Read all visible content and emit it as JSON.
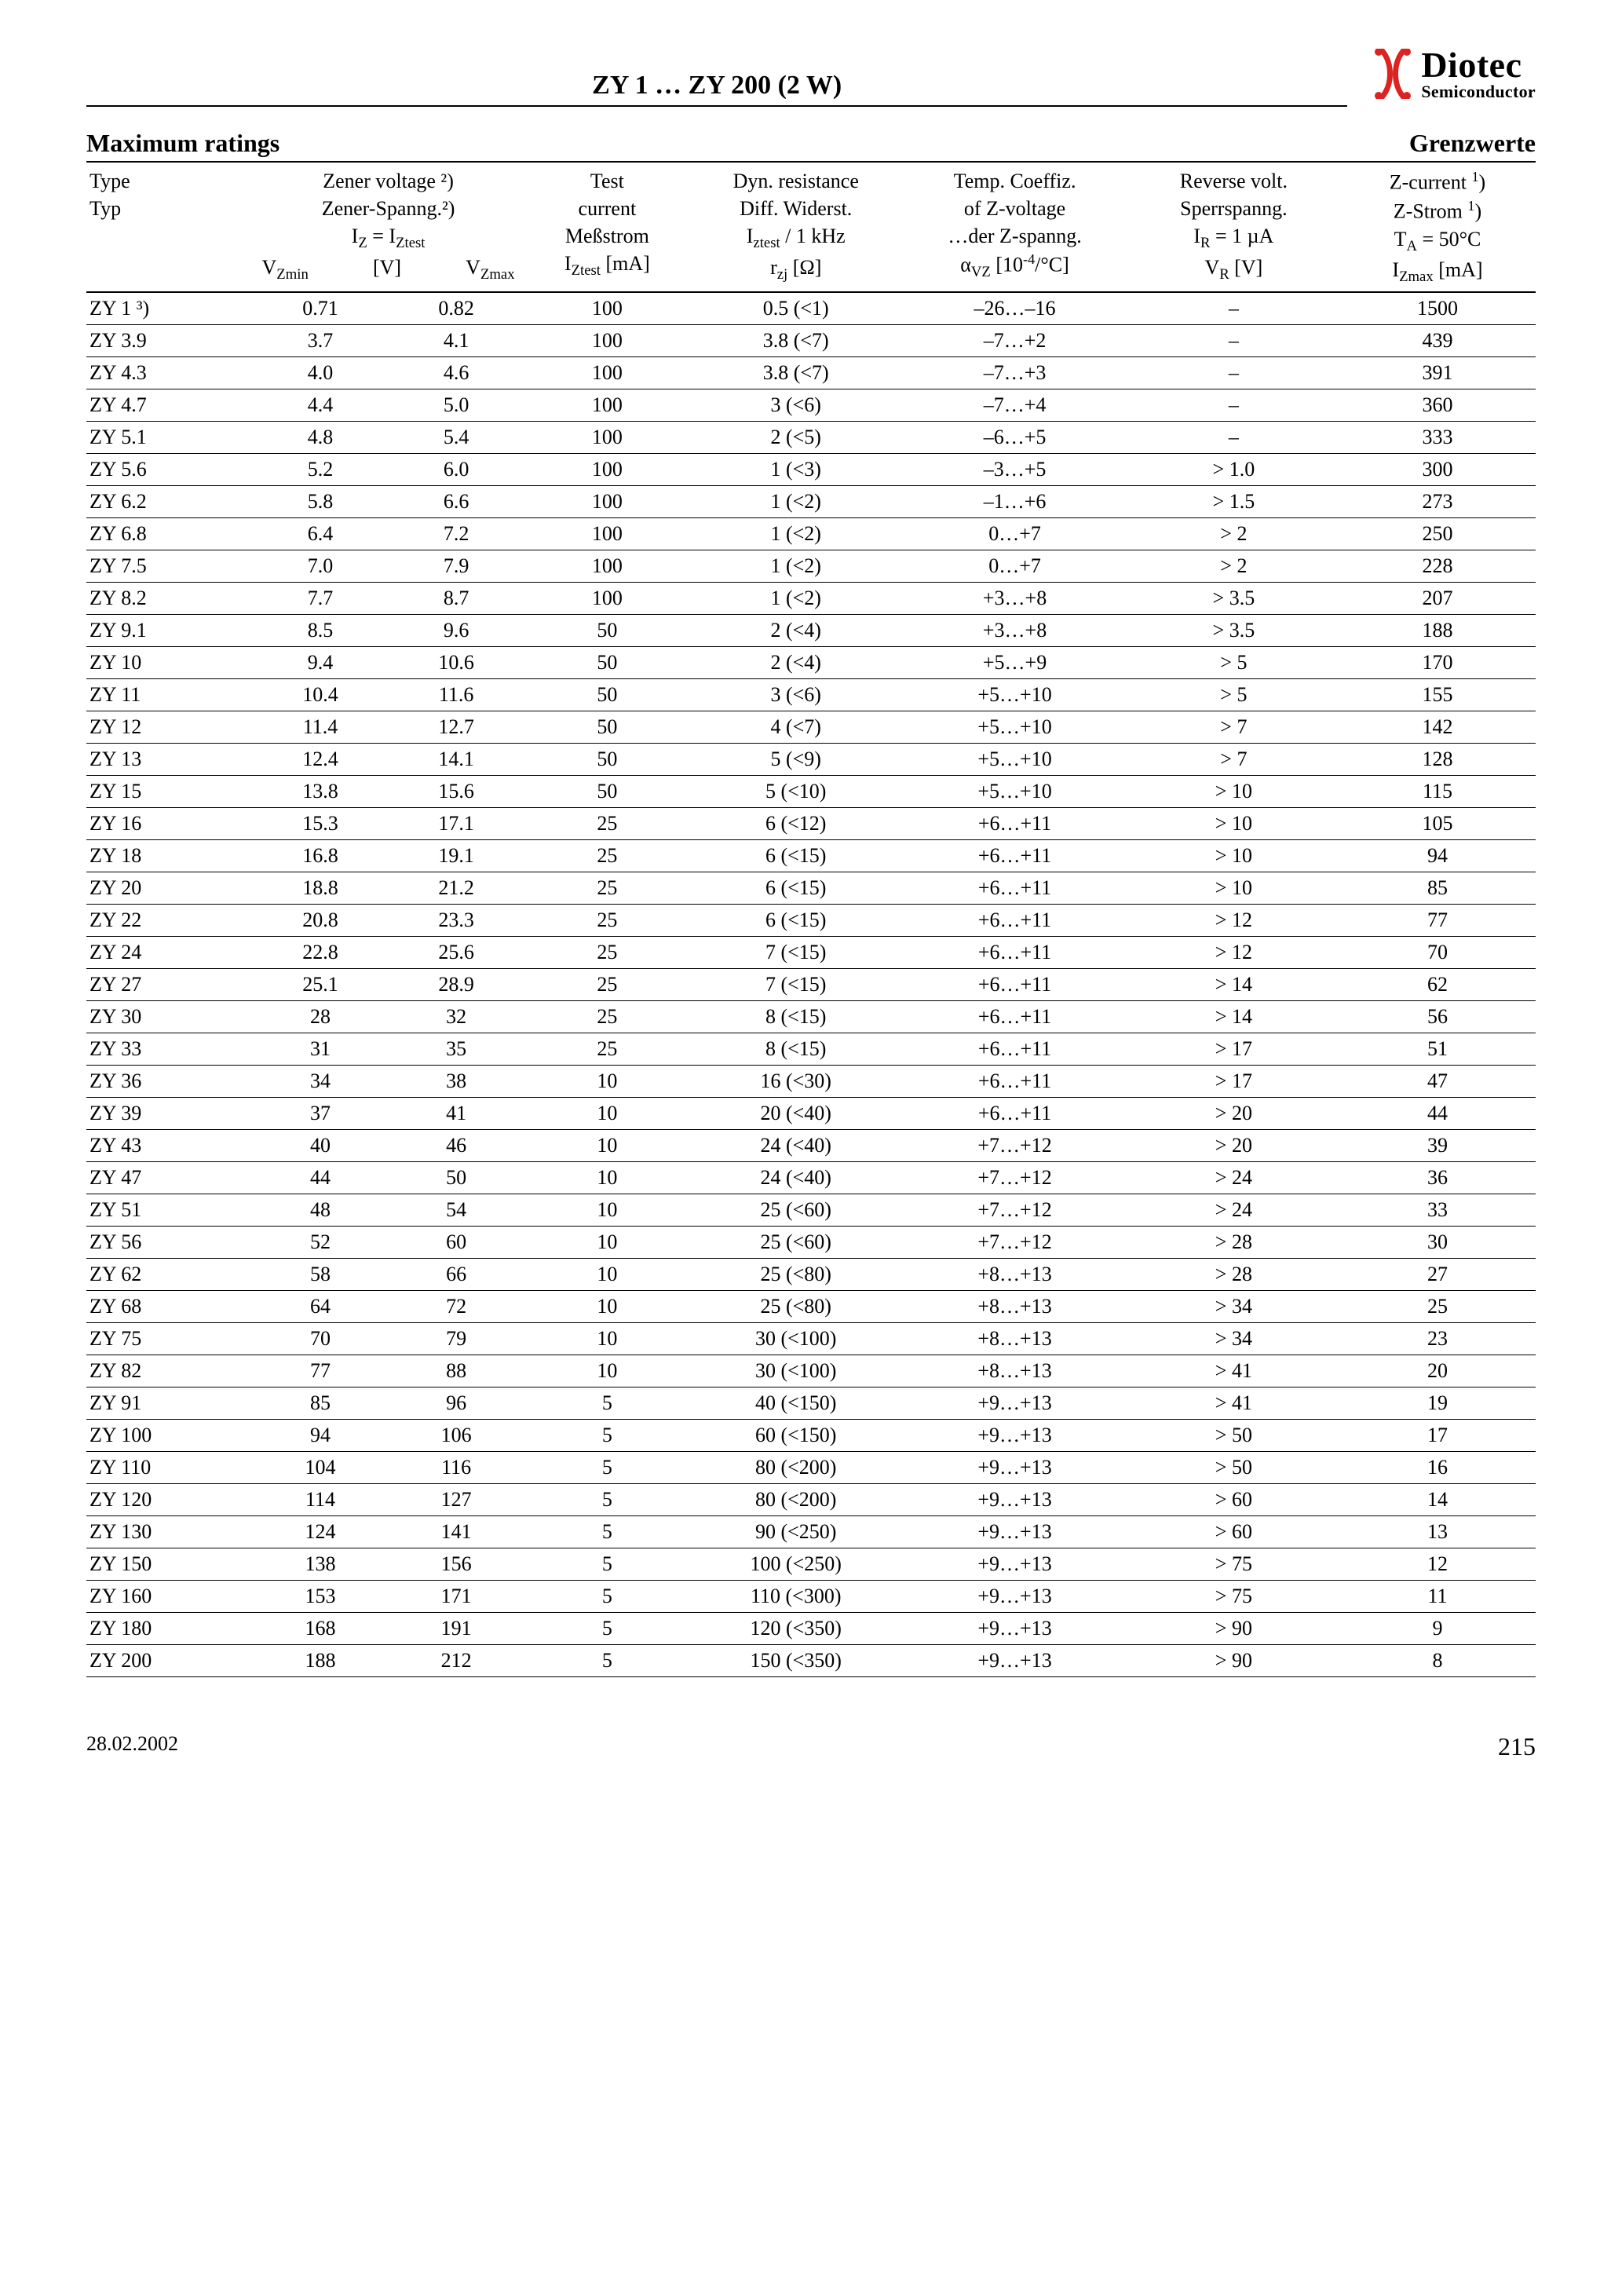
{
  "doc_title": "ZY 1 … ZY 200 (2 W)",
  "logo_main": "Diotec",
  "logo_sub": "Semiconductor",
  "section_left": "Maximum ratings",
  "section_right": "Grenzwerte",
  "footer_date": "28.02.2002",
  "footer_page": "215",
  "headers": {
    "type": [
      "Type",
      "Typ"
    ],
    "zener": [
      "Zener voltage ²)",
      "Zener-Spanng.²)",
      "I_Z = I_Ztest"
    ],
    "vzmin": "V_Zmin",
    "vz_unit": "[V]",
    "vzmax": "V_Zmax",
    "iztest": [
      "Test",
      "current",
      "Meßstrom",
      "I_Ztest [mA]"
    ],
    "rzj": [
      "Dyn. resistance",
      "Diff. Widerst.",
      "I_ztest / 1 kHz",
      "r_zj [Ω]"
    ],
    "avz": [
      "Temp. Coeffiz.",
      "of Z-voltage",
      "…der Z-spanng.",
      "α_VZ [10⁻⁴/°C]"
    ],
    "vr": [
      "Reverse volt.",
      "Sperrspanng.",
      "I_R = 1 µA",
      "V_R [V]"
    ],
    "izmax": [
      "Z-current ¹)",
      "Z-Strom ¹)",
      "T_A = 50°C",
      "I_Zmax [mA]"
    ]
  },
  "rows": [
    {
      "type": "ZY 1 ³)",
      "vzmin": "0.71",
      "vzmax": "0.82",
      "iz": "100",
      "rzj": "0.5 (<1)",
      "avz": "–26…–16",
      "vr": "–",
      "izmax": "1500"
    },
    {
      "type": "ZY 3.9",
      "vzmin": "3.7",
      "vzmax": "4.1",
      "iz": "100",
      "rzj": "3.8 (<7)",
      "avz": "–7…+2",
      "vr": "–",
      "izmax": "439"
    },
    {
      "type": "ZY 4.3",
      "vzmin": "4.0",
      "vzmax": "4.6",
      "iz": "100",
      "rzj": "3.8 (<7)",
      "avz": "–7…+3",
      "vr": "–",
      "izmax": "391"
    },
    {
      "type": "ZY 4.7",
      "vzmin": "4.4",
      "vzmax": "5.0",
      "iz": "100",
      "rzj": "3 (<6)",
      "avz": "–7…+4",
      "vr": "–",
      "izmax": "360"
    },
    {
      "type": "ZY 5.1",
      "vzmin": "4.8",
      "vzmax": "5.4",
      "iz": "100",
      "rzj": "2 (<5)",
      "avz": "–6…+5",
      "vr": "–",
      "izmax": "333"
    },
    {
      "type": "ZY 5.6",
      "vzmin": "5.2",
      "vzmax": "6.0",
      "iz": "100",
      "rzj": "1 (<3)",
      "avz": "–3…+5",
      "vr": "> 1.0",
      "izmax": "300"
    },
    {
      "type": "ZY 6.2",
      "vzmin": "5.8",
      "vzmax": "6.6",
      "iz": "100",
      "rzj": "1 (<2)",
      "avz": "–1…+6",
      "vr": "> 1.5",
      "izmax": "273"
    },
    {
      "type": "ZY 6.8",
      "vzmin": "6.4",
      "vzmax": "7.2",
      "iz": "100",
      "rzj": "1 (<2)",
      "avz": "0…+7",
      "vr": "> 2",
      "izmax": "250"
    },
    {
      "type": "ZY 7.5",
      "vzmin": "7.0",
      "vzmax": "7.9",
      "iz": "100",
      "rzj": "1 (<2)",
      "avz": "0…+7",
      "vr": "> 2",
      "izmax": "228"
    },
    {
      "type": "ZY 8.2",
      "vzmin": "7.7",
      "vzmax": "8.7",
      "iz": "100",
      "rzj": "1 (<2)",
      "avz": "+3…+8",
      "vr": "> 3.5",
      "izmax": "207"
    },
    {
      "type": "ZY 9.1",
      "vzmin": "8.5",
      "vzmax": "9.6",
      "iz": "50",
      "rzj": "2 (<4)",
      "avz": "+3…+8",
      "vr": "> 3.5",
      "izmax": "188"
    },
    {
      "type": "ZY 10",
      "vzmin": "9.4",
      "vzmax": "10.6",
      "iz": "50",
      "rzj": "2 (<4)",
      "avz": "+5…+9",
      "vr": "> 5",
      "izmax": "170"
    },
    {
      "type": "ZY 11",
      "vzmin": "10.4",
      "vzmax": "11.6",
      "iz": "50",
      "rzj": "3 (<6)",
      "avz": "+5…+10",
      "vr": "> 5",
      "izmax": "155"
    },
    {
      "type": "ZY 12",
      "vzmin": "11.4",
      "vzmax": "12.7",
      "iz": "50",
      "rzj": "4 (<7)",
      "avz": "+5…+10",
      "vr": "> 7",
      "izmax": "142"
    },
    {
      "type": "ZY 13",
      "vzmin": "12.4",
      "vzmax": "14.1",
      "iz": "50",
      "rzj": "5 (<9)",
      "avz": "+5…+10",
      "vr": "> 7",
      "izmax": "128"
    },
    {
      "type": "ZY 15",
      "vzmin": "13.8",
      "vzmax": "15.6",
      "iz": "50",
      "rzj": "5 (<10)",
      "avz": "+5…+10",
      "vr": "> 10",
      "izmax": "115"
    },
    {
      "type": "ZY 16",
      "vzmin": "15.3",
      "vzmax": "17.1",
      "iz": "25",
      "rzj": "6 (<12)",
      "avz": "+6…+11",
      "vr": "> 10",
      "izmax": "105"
    },
    {
      "type": "ZY 18",
      "vzmin": "16.8",
      "vzmax": "19.1",
      "iz": "25",
      "rzj": "6 (<15)",
      "avz": "+6…+11",
      "vr": "> 10",
      "izmax": "94"
    },
    {
      "type": "ZY 20",
      "vzmin": "18.8",
      "vzmax": "21.2",
      "iz": "25",
      "rzj": "6 (<15)",
      "avz": "+6…+11",
      "vr": "> 10",
      "izmax": "85"
    },
    {
      "type": "ZY 22",
      "vzmin": "20.8",
      "vzmax": "23.3",
      "iz": "25",
      "rzj": "6 (<15)",
      "avz": "+6…+11",
      "vr": "> 12",
      "izmax": "77"
    },
    {
      "type": "ZY 24",
      "vzmin": "22.8",
      "vzmax": "25.6",
      "iz": "25",
      "rzj": "7 (<15)",
      "avz": "+6…+11",
      "vr": "> 12",
      "izmax": "70"
    },
    {
      "type": "ZY 27",
      "vzmin": "25.1",
      "vzmax": "28.9",
      "iz": "25",
      "rzj": "7 (<15)",
      "avz": "+6…+11",
      "vr": "> 14",
      "izmax": "62"
    },
    {
      "type": "ZY 30",
      "vzmin": "28",
      "vzmax": "32",
      "iz": "25",
      "rzj": "8 (<15)",
      "avz": "+6…+11",
      "vr": "> 14",
      "izmax": "56"
    },
    {
      "type": "ZY 33",
      "vzmin": "31",
      "vzmax": "35",
      "iz": "25",
      "rzj": "8 (<15)",
      "avz": "+6…+11",
      "vr": "> 17",
      "izmax": "51"
    },
    {
      "type": "ZY 36",
      "vzmin": "34",
      "vzmax": "38",
      "iz": "10",
      "rzj": "16 (<30)",
      "avz": "+6…+11",
      "vr": "> 17",
      "izmax": "47"
    },
    {
      "type": "ZY 39",
      "vzmin": "37",
      "vzmax": "41",
      "iz": "10",
      "rzj": "20 (<40)",
      "avz": "+6…+11",
      "vr": "> 20",
      "izmax": "44"
    },
    {
      "type": "ZY 43",
      "vzmin": "40",
      "vzmax": "46",
      "iz": "10",
      "rzj": "24 (<40)",
      "avz": "+7…+12",
      "vr": "> 20",
      "izmax": "39"
    },
    {
      "type": "ZY 47",
      "vzmin": "44",
      "vzmax": "50",
      "iz": "10",
      "rzj": "24 (<40)",
      "avz": "+7…+12",
      "vr": "> 24",
      "izmax": "36"
    },
    {
      "type": "ZY 51",
      "vzmin": "48",
      "vzmax": "54",
      "iz": "10",
      "rzj": "25 (<60)",
      "avz": "+7…+12",
      "vr": "> 24",
      "izmax": "33"
    },
    {
      "type": "ZY 56",
      "vzmin": "52",
      "vzmax": "60",
      "iz": "10",
      "rzj": "25 (<60)",
      "avz": "+7…+12",
      "vr": "> 28",
      "izmax": "30"
    },
    {
      "type": "ZY 62",
      "vzmin": "58",
      "vzmax": "66",
      "iz": "10",
      "rzj": "25 (<80)",
      "avz": "+8…+13",
      "vr": "> 28",
      "izmax": "27"
    },
    {
      "type": "ZY 68",
      "vzmin": "64",
      "vzmax": "72",
      "iz": "10",
      "rzj": "25 (<80)",
      "avz": "+8…+13",
      "vr": "> 34",
      "izmax": "25"
    },
    {
      "type": "ZY 75",
      "vzmin": "70",
      "vzmax": "79",
      "iz": "10",
      "rzj": "30 (<100)",
      "avz": "+8…+13",
      "vr": "> 34",
      "izmax": "23"
    },
    {
      "type": "ZY 82",
      "vzmin": "77",
      "vzmax": "88",
      "iz": "10",
      "rzj": "30 (<100)",
      "avz": "+8…+13",
      "vr": "> 41",
      "izmax": "20"
    },
    {
      "type": "ZY 91",
      "vzmin": "85",
      "vzmax": "96",
      "iz": "5",
      "rzj": "40 (<150)",
      "avz": "+9…+13",
      "vr": "> 41",
      "izmax": "19"
    },
    {
      "type": "ZY 100",
      "vzmin": "94",
      "vzmax": "106",
      "iz": "5",
      "rzj": "60 (<150)",
      "avz": "+9…+13",
      "vr": "> 50",
      "izmax": "17"
    },
    {
      "type": "ZY 110",
      "vzmin": "104",
      "vzmax": "116",
      "iz": "5",
      "rzj": "80 (<200)",
      "avz": "+9…+13",
      "vr": "> 50",
      "izmax": "16"
    },
    {
      "type": "ZY 120",
      "vzmin": "114",
      "vzmax": "127",
      "iz": "5",
      "rzj": "80 (<200)",
      "avz": "+9…+13",
      "vr": "> 60",
      "izmax": "14"
    },
    {
      "type": "ZY 130",
      "vzmin": "124",
      "vzmax": "141",
      "iz": "5",
      "rzj": "90 (<250)",
      "avz": "+9…+13",
      "vr": "> 60",
      "izmax": "13"
    },
    {
      "type": "ZY 150",
      "vzmin": "138",
      "vzmax": "156",
      "iz": "5",
      "rzj": "100 (<250)",
      "avz": "+9…+13",
      "vr": "> 75",
      "izmax": "12"
    },
    {
      "type": "ZY 160",
      "vzmin": "153",
      "vzmax": "171",
      "iz": "5",
      "rzj": "110 (<300)",
      "avz": "+9…+13",
      "vr": "> 75",
      "izmax": "11"
    },
    {
      "type": "ZY 180",
      "vzmin": "168",
      "vzmax": "191",
      "iz": "5",
      "rzj": "120 (<350)",
      "avz": "+9…+13",
      "vr": "> 90",
      "izmax": "9"
    },
    {
      "type": "ZY 200",
      "vzmin": "188",
      "vzmax": "212",
      "iz": "5",
      "rzj": "150 (<350)",
      "avz": "+9…+13",
      "vr": "> 90",
      "izmax": "8"
    }
  ]
}
